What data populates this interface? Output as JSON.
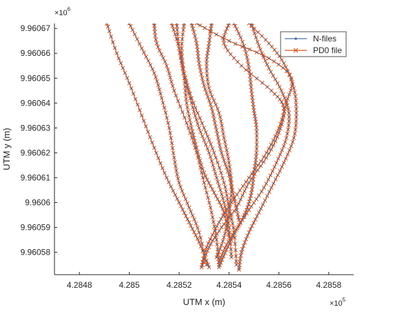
{
  "chart_data": {
    "type": "line",
    "title": "",
    "xlabel": "UTM x (m)",
    "ylabel": "UTM y (m)",
    "x_exponent_label": {
      "base": "×10",
      "exp": "5"
    },
    "y_exponent_label": {
      "base": "×10",
      "exp": "6"
    },
    "xlim": [
      428470,
      428590
    ],
    "ylim": [
      9960571,
      9960672
    ],
    "x_tick_values": [
      428480,
      428500,
      428520,
      428540,
      428560,
      428580
    ],
    "x_tick_labels": [
      "4.2848",
      "4.285",
      "4.2852",
      "4.2854",
      "4.2856",
      "4.2858"
    ],
    "y_tick_values": [
      9960580,
      9960590,
      9960600,
      9960610,
      9960620,
      9960630,
      9960640,
      9960650,
      9960660,
      9960670
    ],
    "y_tick_labels": [
      "9.96058",
      "9.96059",
      "9.9606",
      "9.96061",
      "9.96062",
      "9.96063",
      "9.96064",
      "9.96065",
      "9.96066",
      "9.96067"
    ],
    "grid": false,
    "legend_position": "top-right",
    "series_styles": [
      {
        "name": "N-files",
        "color": "#4a6fa5",
        "marker": "dot"
      },
      {
        "name": "PD0 file",
        "color": "#d95319",
        "marker": "x"
      }
    ],
    "tracks": [
      [
        [
          428510,
          9960672
        ],
        [
          428511,
          9960664
        ],
        [
          428515,
          9960655
        ],
        [
          428518,
          9960645
        ],
        [
          428523,
          9960632
        ],
        [
          428527,
          9960620
        ],
        [
          428530,
          9960608
        ],
        [
          428533,
          9960596
        ],
        [
          428535,
          9960585
        ],
        [
          428536,
          9960575
        ]
      ],
      [
        [
          428517,
          9960672
        ],
        [
          428520,
          9960662
        ],
        [
          428522,
          9960652
        ],
        [
          428525,
          9960642
        ],
        [
          428530,
          9960630
        ],
        [
          428534,
          9960620
        ],
        [
          428538,
          9960608
        ],
        [
          428540,
          9960598
        ],
        [
          428542,
          9960588
        ],
        [
          428543,
          9960575
        ]
      ],
      [
        [
          428522,
          9960672
        ],
        [
          428521,
          9960662
        ],
        [
          428522,
          9960652
        ],
        [
          428525,
          9960640
        ],
        [
          428528,
          9960630
        ],
        [
          428532,
          9960620
        ],
        [
          428535,
          9960610
        ],
        [
          428538,
          9960600
        ],
        [
          428540,
          9960590
        ],
        [
          428541,
          9960578
        ]
      ],
      [
        [
          428500,
          9960672
        ],
        [
          428505,
          9960662
        ],
        [
          428510,
          9960652
        ],
        [
          428513,
          9960642
        ],
        [
          428516,
          9960630
        ],
        [
          428518,
          9960618
        ],
        [
          428520,
          9960608
        ],
        [
          428524,
          9960598
        ],
        [
          428528,
          9960588
        ],
        [
          428531,
          9960575
        ]
      ],
      [
        [
          428491,
          9960672
        ],
        [
          428495,
          9960660
        ],
        [
          428500,
          9960648
        ],
        [
          428505,
          9960635
        ],
        [
          428510,
          9960622
        ],
        [
          428515,
          9960610
        ],
        [
          428520,
          9960600
        ],
        [
          428524,
          9960592
        ],
        [
          428528,
          9960584
        ],
        [
          428532,
          9960574
        ]
      ],
      [
        [
          428519,
          9960672
        ],
        [
          428520,
          9960662
        ],
        [
          428522,
          9960650
        ],
        [
          428523,
          9960640
        ],
        [
          428525,
          9960630
        ],
        [
          428527,
          9960622
        ],
        [
          428530,
          9960612
        ],
        [
          428534,
          9960604
        ],
        [
          428538,
          9960596
        ],
        [
          428540,
          9960586
        ]
      ],
      [
        [
          428525,
          9960672
        ],
        [
          428527,
          9960664
        ],
        [
          428528,
          9960656
        ],
        [
          428530,
          9960647
        ],
        [
          428533,
          9960638
        ],
        [
          428535,
          9960629
        ],
        [
          428537,
          9960620
        ],
        [
          428540,
          9960611
        ],
        [
          428542,
          9960602
        ],
        [
          428544,
          9960593
        ]
      ],
      [
        [
          428527,
          9960672
        ],
        [
          428540,
          9960665
        ],
        [
          428556,
          9960658
        ],
        [
          428565,
          9960650
        ],
        [
          428563,
          9960640
        ],
        [
          428560,
          9960630
        ],
        [
          428555,
          9960620
        ],
        [
          428548,
          9960610
        ],
        [
          428541,
          9960600
        ],
        [
          428536,
          9960592
        ],
        [
          428531,
          9960582
        ],
        [
          428529,
          9960574
        ]
      ],
      [
        [
          428533,
          9960672
        ],
        [
          428532,
          9960664
        ],
        [
          428531,
          9960656
        ],
        [
          428532,
          9960646
        ],
        [
          428536,
          9960636
        ],
        [
          428538,
          9960626
        ],
        [
          428540,
          9960616
        ],
        [
          428541,
          9960606
        ],
        [
          428540,
          9960596
        ],
        [
          428538,
          9960586
        ],
        [
          428535,
          9960578
        ]
      ],
      [
        [
          428540,
          9960672
        ],
        [
          428538,
          9960664
        ],
        [
          428545,
          9960655
        ],
        [
          428557,
          9960645
        ],
        [
          428562,
          9960638
        ],
        [
          428560,
          9960628
        ],
        [
          428555,
          9960618
        ],
        [
          428548,
          9960608
        ],
        [
          428543,
          9960598
        ],
        [
          428537,
          9960590
        ],
        [
          428532,
          9960582
        ],
        [
          428529,
          9960574
        ]
      ],
      [
        [
          428542,
          9960672
        ],
        [
          428546,
          9960663
        ],
        [
          428548,
          9960654
        ],
        [
          428549,
          9960645
        ],
        [
          428550,
          9960637
        ],
        [
          428551,
          9960630
        ],
        [
          428551,
          9960620
        ],
        [
          428550,
          9960612
        ],
        [
          428549,
          9960604
        ],
        [
          428547,
          9960597
        ],
        [
          428544,
          9960591
        ],
        [
          428539,
          9960583
        ],
        [
          428536,
          9960576
        ]
      ],
      [
        [
          428548,
          9960672
        ],
        [
          428556,
          9960664
        ],
        [
          428562,
          9960656
        ],
        [
          428566,
          9960646
        ],
        [
          428567,
          9960636
        ],
        [
          428566,
          9960626
        ],
        [
          428562,
          9960616
        ],
        [
          428557,
          9960606
        ],
        [
          428552,
          9960596
        ],
        [
          428548,
          9960588
        ],
        [
          428545,
          9960580
        ],
        [
          428544,
          9960573
        ]
      ],
      [
        [
          428549,
          9960672
        ],
        [
          428552,
          9960663
        ],
        [
          428556,
          9960654
        ],
        [
          428561,
          9960645
        ],
        [
          428564,
          9960636
        ],
        [
          428563,
          9960626
        ],
        [
          428559,
          9960616
        ],
        [
          428554,
          9960606
        ],
        [
          428548,
          9960597
        ],
        [
          428543,
          9960589
        ],
        [
          428539,
          9960581
        ],
        [
          428536,
          9960574
        ]
      ]
    ]
  }
}
